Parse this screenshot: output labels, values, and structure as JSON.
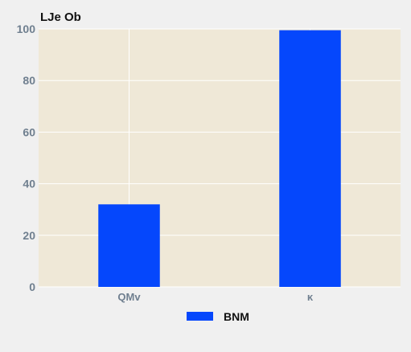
{
  "chart_data": {
    "type": "bar",
    "title": "LJe  Ob",
    "xlabel": "",
    "ylabel": "",
    "categories": [
      "QMv",
      "κ"
    ],
    "series": [
      {
        "name": "BNM",
        "values": [
          32,
          99.5
        ]
      }
    ],
    "ylim": [
      0,
      100
    ],
    "yticks": [
      0,
      20,
      40,
      60,
      80,
      100
    ],
    "grid": true,
    "legend_position": "bottom-center",
    "colors": {
      "plot_background": "#efe8d7",
      "page_background": "#f0f0f0",
      "bar": "#0547fc",
      "grid": "#ffffff",
      "tick_text": "#6f7f8f"
    }
  }
}
